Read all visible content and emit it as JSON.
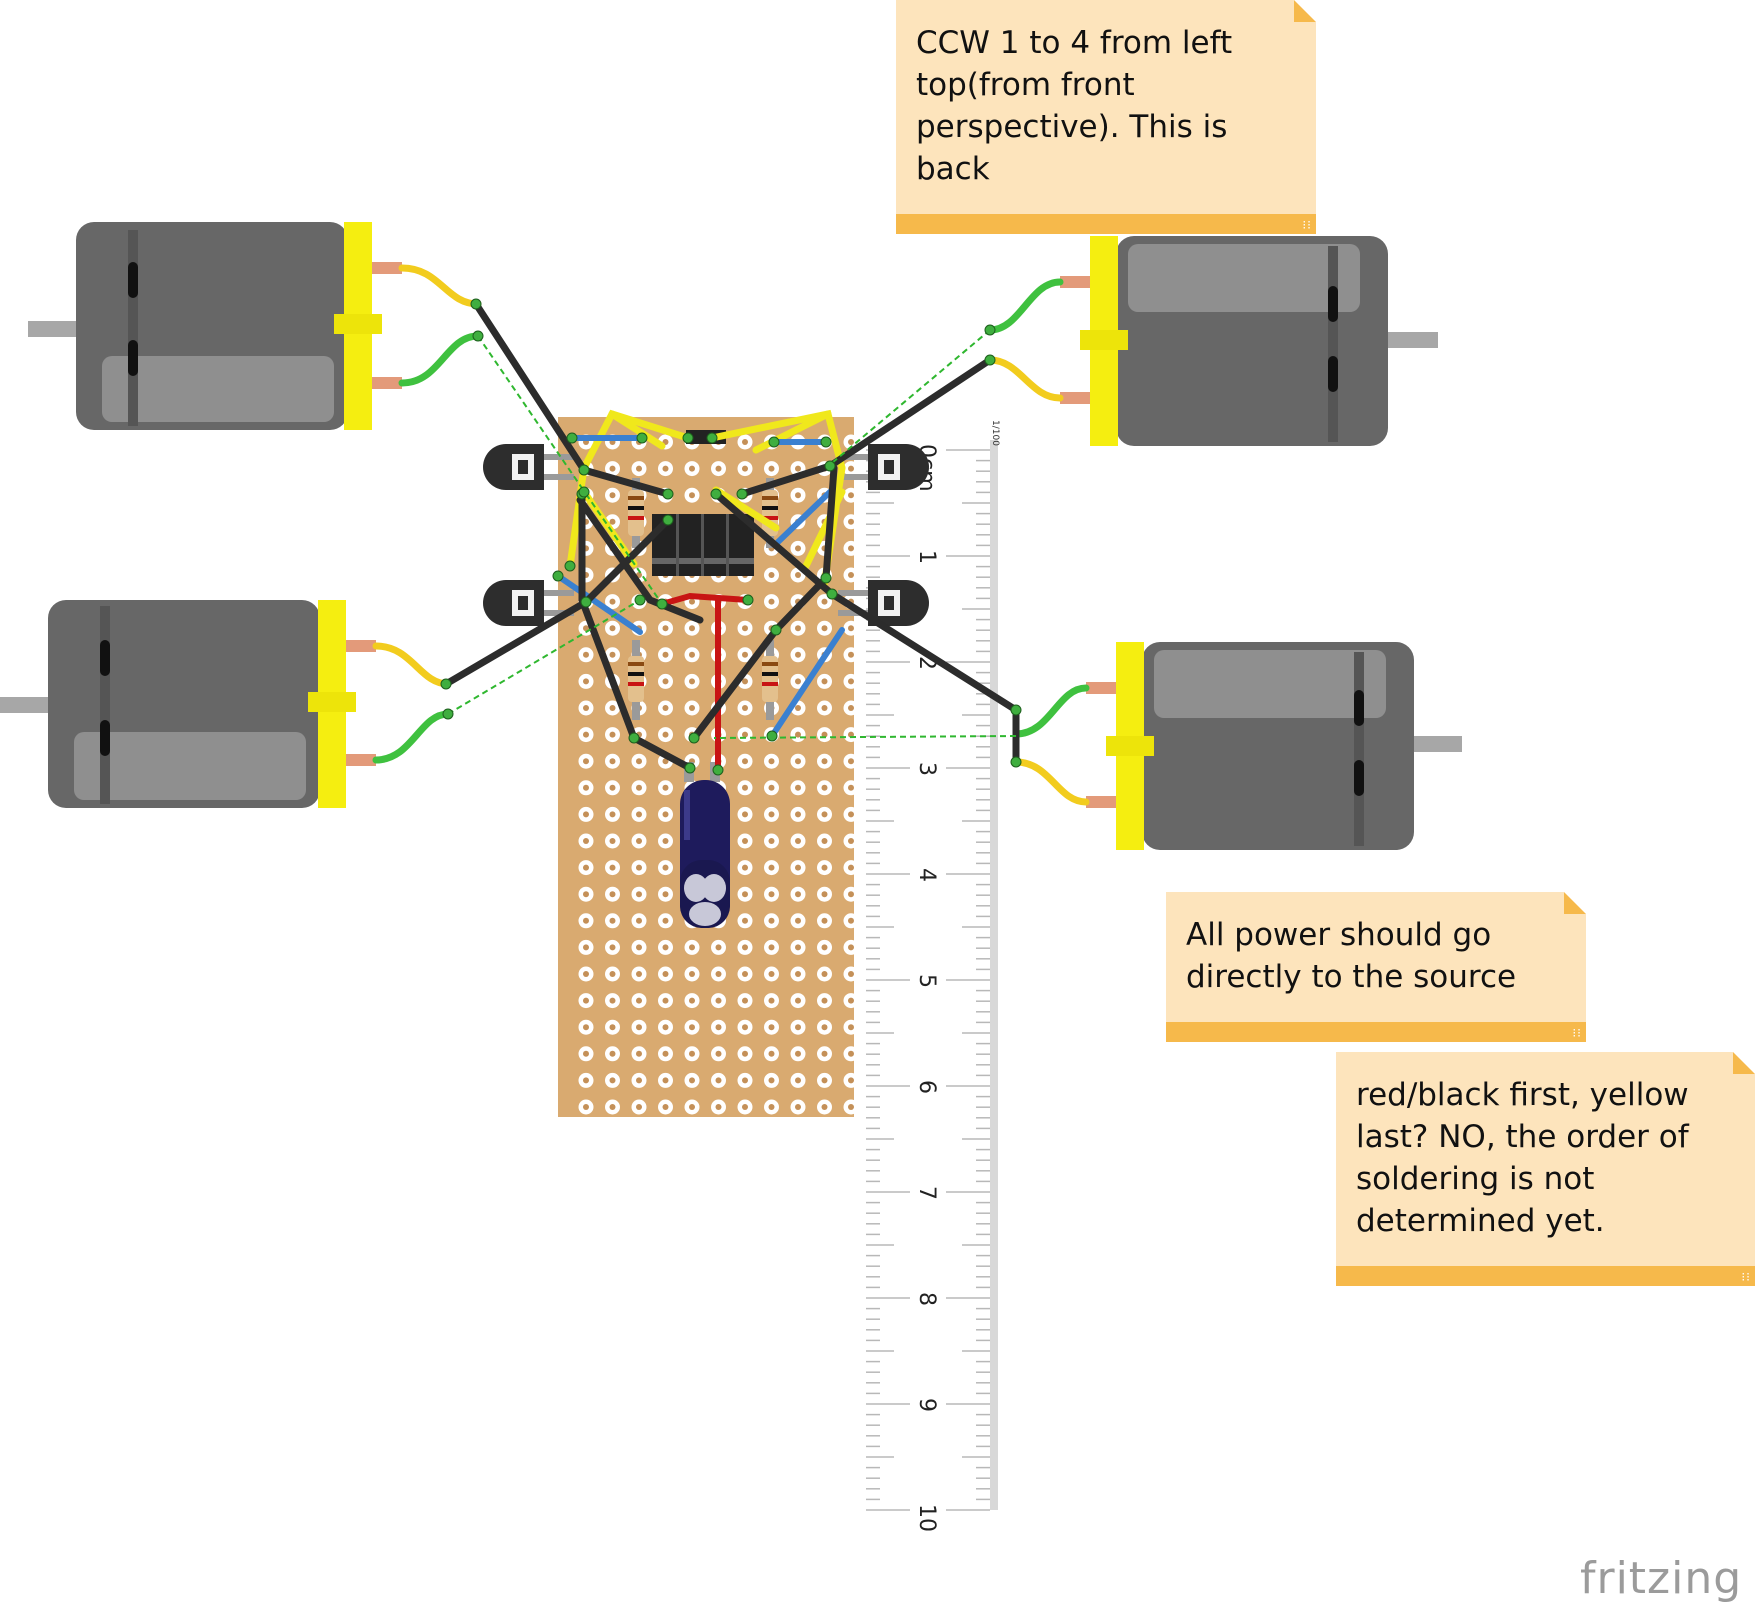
{
  "notes": {
    "top": "CCW 1 to 4 from left top(from front perspective). This is back",
    "middle": "All power should go directly  to the source",
    "bottom": "red/black first, yellow last? NO, the order of soldering is not determined yet."
  },
  "ruler": {
    "unit_label": "1/100",
    "labels": [
      "0cm",
      "1",
      "2",
      "3",
      "4",
      "5",
      "6",
      "7",
      "8",
      "9",
      "10"
    ]
  },
  "brand": "fritzing",
  "colors": {
    "board": "#d9aa70",
    "motor_body": "#676767",
    "motor_cap": "#f5ee10",
    "note_fill": "#fde4bc",
    "note_bar": "#f6b94b",
    "wire_black": "#2c2c2c",
    "wire_yellow": "#f0e81c",
    "wire_blue": "#3a80d0",
    "wire_red": "#c81414",
    "lead_yellow": "#f2cc1e",
    "lead_green": "#3fc13f",
    "ratsnest": "#2fb72f"
  },
  "components": {
    "motors": [
      "motor-1",
      "motor-2",
      "motor-3",
      "motor-4"
    ],
    "transistors": [
      "transistor-1",
      "transistor-2",
      "transistor-3",
      "transistor-4"
    ],
    "chip": "ic-chip",
    "capacitor": "electrolytic-capacitor"
  }
}
